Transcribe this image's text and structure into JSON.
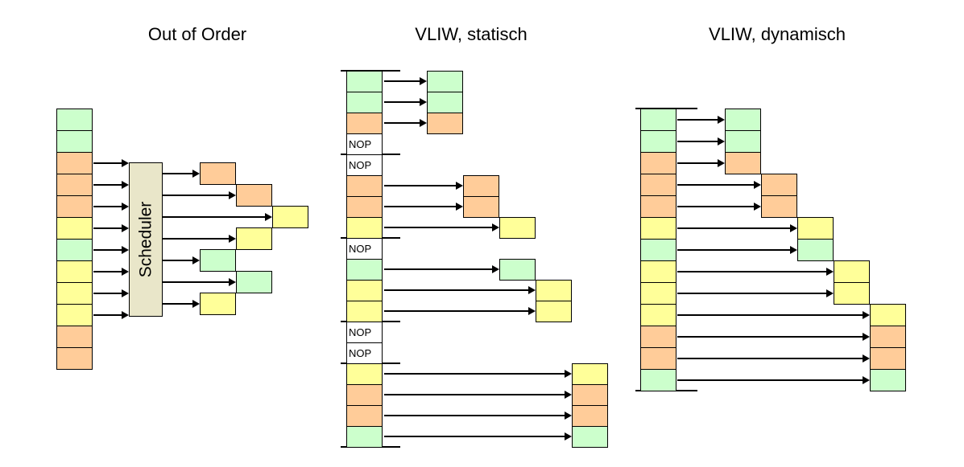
{
  "colors": {
    "green": "#ccffcc",
    "orange": "#ffcc99",
    "yellow": "#ffff99",
    "scheduler_fill": "#e9e6c9",
    "line": "#000000"
  },
  "panels": {
    "out_of_order": {
      "title": "Out of Order",
      "scheduler_label": "Scheduler",
      "column": [
        "green",
        "green",
        "orange",
        "orange",
        "orange",
        "yellow",
        "green",
        "yellow",
        "yellow",
        "yellow",
        "orange",
        "orange"
      ],
      "scheduler_input_rows": [
        2,
        3,
        4,
        5,
        6,
        7,
        8,
        9
      ],
      "outputs": [
        {
          "slot": 0,
          "level": 0,
          "color": "orange"
        },
        {
          "slot": 1,
          "level": 1,
          "color": "orange"
        },
        {
          "slot": 2,
          "level": 2,
          "color": "yellow"
        },
        {
          "slot": 3,
          "level": 1,
          "color": "yellow"
        },
        {
          "slot": 4,
          "level": 0,
          "color": "green"
        },
        {
          "slot": 5,
          "level": 1,
          "color": "green"
        },
        {
          "slot": 6,
          "level": 0,
          "color": "yellow"
        }
      ]
    },
    "vliw_static": {
      "title": "VLIW, statisch",
      "nop_label": "NOP",
      "column": [
        "green",
        "green",
        "orange",
        "NOP",
        "NOP",
        "orange",
        "orange",
        "yellow",
        "NOP",
        "green",
        "yellow",
        "yellow",
        "NOP",
        "NOP",
        "yellow",
        "orange",
        "orange",
        "green"
      ],
      "separator_rows": [
        0,
        4,
        8,
        12,
        14,
        18
      ],
      "outputs": [
        {
          "row": 0,
          "level": 0
        },
        {
          "row": 1,
          "level": 0
        },
        {
          "row": 2,
          "level": 0
        },
        {
          "row": 5,
          "level": 1
        },
        {
          "row": 6,
          "level": 1
        },
        {
          "row": 7,
          "level": 2
        },
        {
          "row": 9,
          "level": 2
        },
        {
          "row": 10,
          "level": 3
        },
        {
          "row": 11,
          "level": 3
        },
        {
          "row": 14,
          "level": 4
        },
        {
          "row": 15,
          "level": 4
        },
        {
          "row": 16,
          "level": 4
        },
        {
          "row": 17,
          "level": 4
        }
      ]
    },
    "vliw_dynamic": {
      "title": "VLIW, dynamisch",
      "column": [
        "green",
        "green",
        "orange",
        "orange",
        "orange",
        "yellow",
        "green",
        "yellow",
        "yellow",
        "yellow",
        "orange",
        "orange",
        "green"
      ],
      "separator_rows": [
        0,
        13
      ],
      "outputs": [
        {
          "row": 0,
          "level": 0
        },
        {
          "row": 1,
          "level": 0
        },
        {
          "row": 2,
          "level": 0
        },
        {
          "row": 3,
          "level": 1
        },
        {
          "row": 4,
          "level": 1
        },
        {
          "row": 5,
          "level": 2
        },
        {
          "row": 6,
          "level": 2
        },
        {
          "row": 7,
          "level": 3
        },
        {
          "row": 8,
          "level": 3
        },
        {
          "row": 9,
          "level": 4
        },
        {
          "row": 10,
          "level": 4
        },
        {
          "row": 11,
          "level": 4
        },
        {
          "row": 12,
          "level": 4
        }
      ]
    }
  }
}
